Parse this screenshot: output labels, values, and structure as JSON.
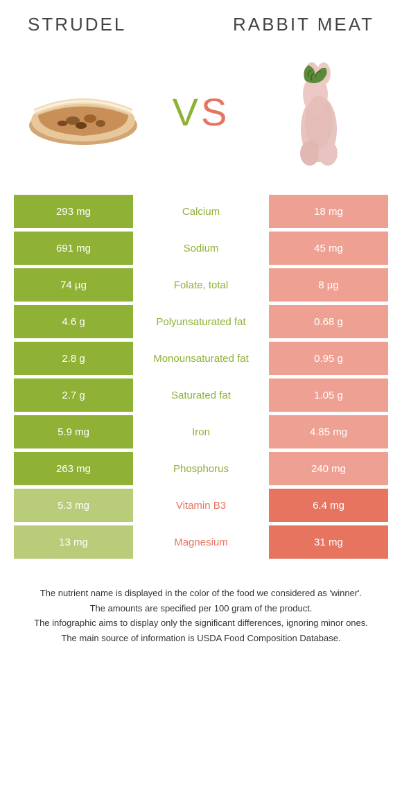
{
  "title_left": "STRUDEL",
  "title_right": "RABBIT MEAT",
  "vs_v": "V",
  "vs_s": "S",
  "colors": {
    "left_win": "#8fb135",
    "left_lose": "#b8cc7a",
    "right_win": "#e6745f",
    "right_lose": "#eea193",
    "nutrient_left": "#8fb135",
    "nutrient_right": "#e6745f"
  },
  "rows": [
    {
      "left": "293 mg",
      "nutrient": "Calcium",
      "right": "18 mg",
      "winner": "left"
    },
    {
      "left": "691 mg",
      "nutrient": "Sodium",
      "right": "45 mg",
      "winner": "left"
    },
    {
      "left": "74 µg",
      "nutrient": "Folate, total",
      "right": "8 µg",
      "winner": "left"
    },
    {
      "left": "4.6 g",
      "nutrient": "Polyunsaturated fat",
      "right": "0.68 g",
      "winner": "left"
    },
    {
      "left": "2.8 g",
      "nutrient": "Monounsaturated fat",
      "right": "0.95 g",
      "winner": "left"
    },
    {
      "left": "2.7 g",
      "nutrient": "Saturated fat",
      "right": "1.05 g",
      "winner": "left"
    },
    {
      "left": "5.9 mg",
      "nutrient": "Iron",
      "right": "4.85 mg",
      "winner": "left"
    },
    {
      "left": "263 mg",
      "nutrient": "Phosphorus",
      "right": "240 mg",
      "winner": "left"
    },
    {
      "left": "5.3 mg",
      "nutrient": "Vitamin B3",
      "right": "6.4 mg",
      "winner": "right"
    },
    {
      "left": "13 mg",
      "nutrient": "Magnesium",
      "right": "31 mg",
      "winner": "right"
    }
  ],
  "footer": [
    "The nutrient name is displayed in the color of the food we considered as 'winner'.",
    "The amounts are specified per 100 gram of the product.",
    "The infographic aims to display only the significant differences, ignoring minor ones.",
    "The main source of information is USDA Food Composition Database."
  ]
}
